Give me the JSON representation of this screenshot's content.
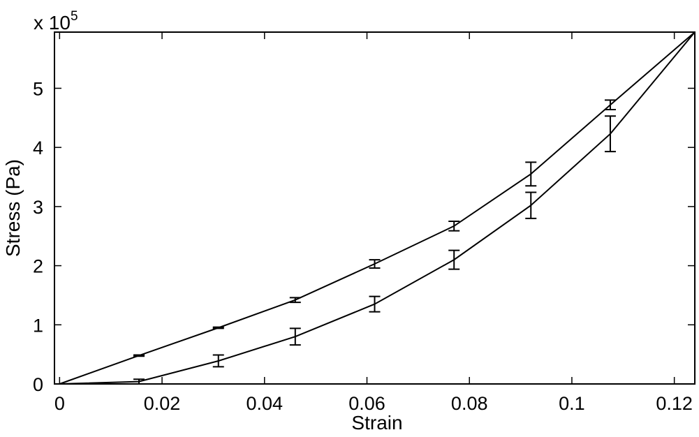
{
  "chart_data": {
    "type": "line",
    "xlabel": "Strain",
    "ylabel": "Stress (Pa)",
    "y_multiplier_label": "x 10",
    "y_multiplier_exponent": "5",
    "xlim": [
      -0.001,
      0.124
    ],
    "ylim": [
      0,
      5.95
    ],
    "x_ticks": [
      0,
      0.02,
      0.04,
      0.06,
      0.08,
      0.1,
      0.12
    ],
    "x_tick_labels": [
      "0",
      "0.02",
      "0.04",
      "0.06",
      "0.08",
      "0.1",
      "0.12"
    ],
    "y_ticks": [
      0,
      1,
      2,
      3,
      4,
      5
    ],
    "y_tick_labels": [
      "0",
      "1",
      "2",
      "3",
      "4",
      "5"
    ],
    "grid": false,
    "line_color": "#000000",
    "series": [
      {
        "x": [
          0,
          0.0155,
          0.031,
          0.046,
          0.0615,
          0.077,
          0.092,
          0.1075,
          0.124
        ],
        "y": [
          0,
          0.48,
          0.95,
          1.42,
          2.03,
          2.67,
          3.55,
          4.72,
          5.95
        ],
        "err": [
          0,
          0.01,
          0.01,
          0.04,
          0.07,
          0.08,
          0.2,
          0.08,
          0
        ]
      },
      {
        "x": [
          0,
          0.0155,
          0.031,
          0.046,
          0.0615,
          0.077,
          0.092,
          0.1075,
          0.124
        ],
        "y": [
          0,
          0.04,
          0.39,
          0.8,
          1.35,
          2.1,
          3.02,
          4.23,
          5.95
        ],
        "err": [
          0,
          0.04,
          0.1,
          0.14,
          0.13,
          0.16,
          0.22,
          0.3,
          0
        ]
      }
    ]
  }
}
